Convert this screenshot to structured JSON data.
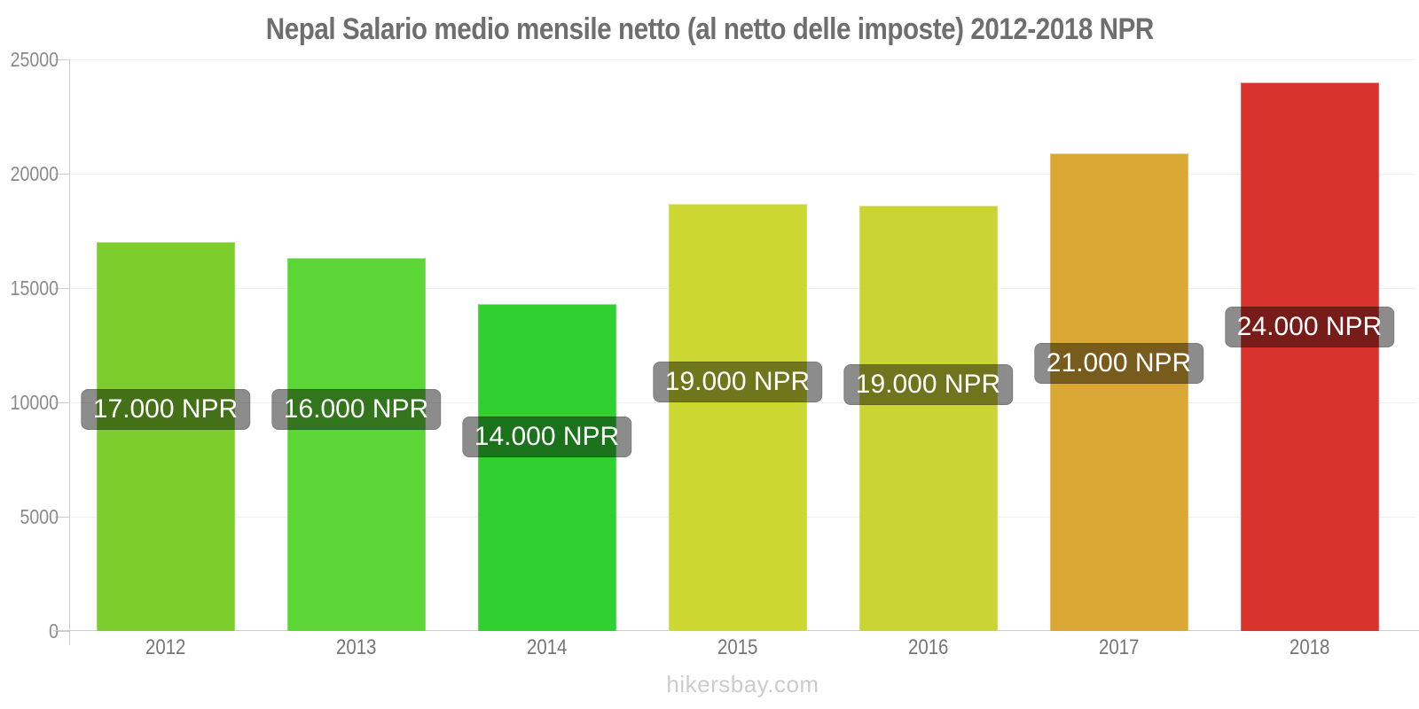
{
  "page": {
    "footer": "hikersbay.com"
  },
  "colors": {
    "title": "#6E6E6E",
    "axis": "#CCCCCC",
    "grid": "#F0F0F0",
    "ytick_labels": "#8A8A8A",
    "year_labels": "#757575",
    "footer": "#CCCCCC",
    "badge_bg": "rgba(0,0,0,0.45)",
    "badge_text": "#FFFFFF"
  },
  "chart_data": {
    "type": "bar",
    "title": "Nepal Salario medio mensile netto (al netto delle imposte) 2012-2018 NPR",
    "categories": [
      "2012",
      "2013",
      "2014",
      "2015",
      "2016",
      "2017",
      "2018"
    ],
    "values": [
      17000,
      16300,
      14300,
      18700,
      18600,
      20900,
      24000
    ],
    "bar_labels": [
      "17.000 NPR",
      "16.000 NPR",
      "14.000 NPR",
      "19.000 NPR",
      "19.000 NPR",
      "21.000 NPR",
      "24.000 NPR"
    ],
    "bar_colors": [
      "#7DCE2C",
      "#5CD636",
      "#30D030",
      "#CDD732",
      "#CBD435",
      "#DBA835",
      "#D9332E"
    ],
    "xlabel": "",
    "ylabel": "",
    "ylim": [
      0,
      25000
    ],
    "yticks": [
      0,
      5000,
      10000,
      15000,
      20000,
      25000
    ],
    "ytick_labels": [
      "0",
      "5000",
      "10000",
      "15000",
      "20000",
      "25000"
    ],
    "grid": true,
    "legend": false,
    "currency": "NPR"
  }
}
